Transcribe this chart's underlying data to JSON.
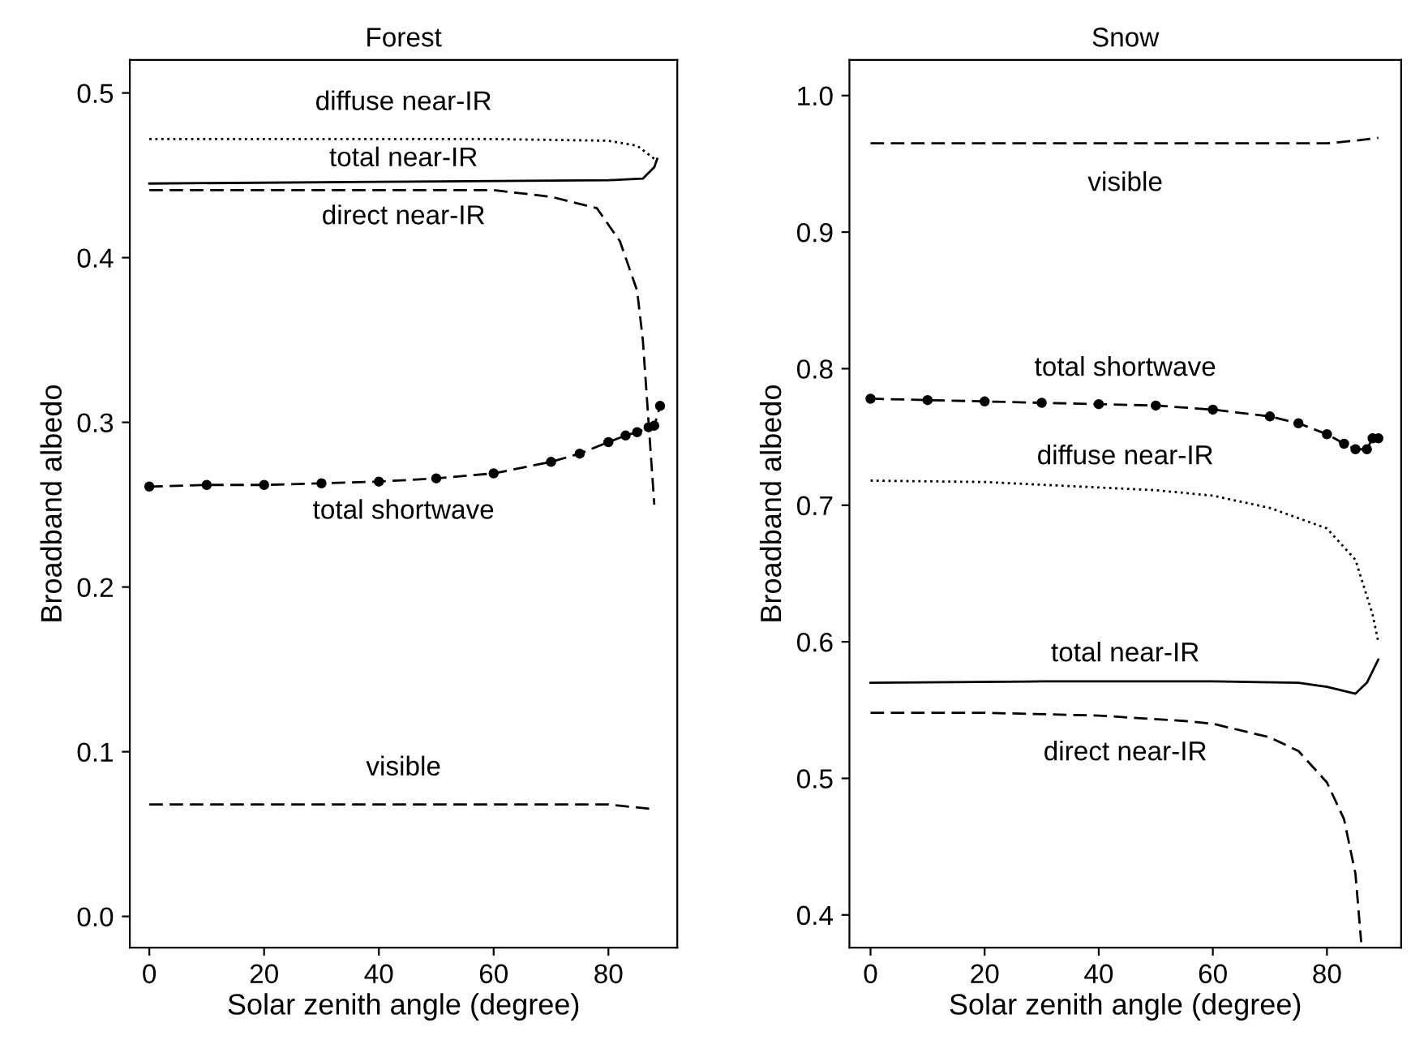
{
  "chart_data": [
    {
      "type": "line",
      "title": "Forest",
      "xlabel": "Solar zenith angle (degree)",
      "ylabel": "Broadband albedo",
      "xlim": [
        -3.4,
        92
      ],
      "ylim": [
        -0.019,
        0.52
      ],
      "xticks": [
        0,
        20,
        40,
        60,
        80
      ],
      "yticks": [
        {
          "value": 0,
          "label": "0.0"
        },
        0.1,
        0.2,
        0.3,
        0.4,
        0.5
      ],
      "grid": false,
      "legend": false,
      "series": [
        {
          "name": "diffuse near-IR",
          "color": "#000000",
          "line_style": "dotted",
          "x": [
            0,
            20,
            40,
            60,
            80,
            85,
            88
          ],
          "values": [
            0.472,
            0.472,
            0.472,
            0.472,
            0.471,
            0.468,
            0.46
          ]
        },
        {
          "name": "total near-IR",
          "color": "#000000",
          "line_style": "solid",
          "x": [
            0,
            40,
            80,
            86,
            88,
            88.5
          ],
          "values": [
            0.445,
            0.446,
            0.447,
            0.448,
            0.455,
            0.46
          ]
        },
        {
          "name": "direct near-IR",
          "color": "#000000",
          "line_style": "dashed",
          "x": [
            0,
            60,
            70,
            78,
            82,
            85,
            86,
            87,
            88
          ],
          "values": [
            0.441,
            0.441,
            0.437,
            0.43,
            0.41,
            0.38,
            0.35,
            0.3,
            0.25
          ]
        },
        {
          "name": "total shortwave",
          "color": "#000000",
          "line_style": "dashed",
          "marker": "circle",
          "x": [
            0,
            10,
            20,
            30,
            40,
            50,
            60,
            70,
            75,
            80,
            83,
            85,
            87,
            88,
            89
          ],
          "values": [
            0.261,
            0.262,
            0.262,
            0.263,
            0.264,
            0.266,
            0.269,
            0.276,
            0.281,
            0.288,
            0.292,
            0.294,
            0.297,
            0.298,
            0.31
          ]
        },
        {
          "name": "visible",
          "color": "#000000",
          "line_style": "dashed",
          "x": [
            0,
            20,
            40,
            60,
            80,
            88
          ],
          "values": [
            0.068,
            0.068,
            0.068,
            0.068,
            0.068,
            0.065
          ]
        }
      ]
    },
    {
      "type": "line",
      "title": "Snow",
      "xlabel": "Solar zenith angle (degree)",
      "ylabel": "Broadband albedo",
      "xlim": [
        -3.7,
        93
      ],
      "ylim": [
        0.376,
        1.026
      ],
      "xticks": [
        0,
        20,
        40,
        60,
        80
      ],
      "yticks": [
        0.4,
        0.5,
        0.6,
        0.7,
        0.8,
        0.9,
        {
          "value": 1.0,
          "label": "1.0"
        }
      ],
      "grid": false,
      "legend": false,
      "series": [
        {
          "name": "visible",
          "color": "#000000",
          "line_style": "dashed",
          "x": [
            0,
            20,
            40,
            60,
            80,
            85,
            89
          ],
          "values": [
            0.965,
            0.965,
            0.965,
            0.965,
            0.965,
            0.967,
            0.969
          ]
        },
        {
          "name": "total shortwave",
          "color": "#000000",
          "line_style": "dashed",
          "marker": "circle",
          "x": [
            0,
            10,
            20,
            30,
            40,
            50,
            60,
            70,
            75,
            80,
            83,
            85,
            87,
            88,
            89
          ],
          "values": [
            0.778,
            0.777,
            0.776,
            0.775,
            0.774,
            0.773,
            0.77,
            0.765,
            0.76,
            0.752,
            0.745,
            0.741,
            0.741,
            0.749,
            0.749
          ]
        },
        {
          "name": "diffuse near-IR",
          "color": "#000000",
          "line_style": "dotted",
          "x": [
            0,
            20,
            40,
            50,
            60,
            70,
            80,
            85,
            88,
            89
          ],
          "values": [
            0.718,
            0.717,
            0.713,
            0.711,
            0.707,
            0.698,
            0.683,
            0.66,
            0.62,
            0.6
          ]
        },
        {
          "name": "total near-IR",
          "color": "#000000",
          "line_style": "solid",
          "x": [
            0,
            30,
            60,
            75,
            80,
            85,
            87,
            89
          ],
          "values": [
            0.57,
            0.571,
            0.571,
            0.57,
            0.567,
            0.562,
            0.57,
            0.587
          ]
        },
        {
          "name": "direct near-IR",
          "color": "#000000",
          "line_style": "dashed",
          "x": [
            0,
            20,
            40,
            55,
            60,
            70,
            75,
            80,
            83,
            85,
            86
          ],
          "values": [
            0.548,
            0.548,
            0.546,
            0.542,
            0.54,
            0.53,
            0.52,
            0.497,
            0.47,
            0.43,
            0.38
          ]
        }
      ]
    }
  ]
}
